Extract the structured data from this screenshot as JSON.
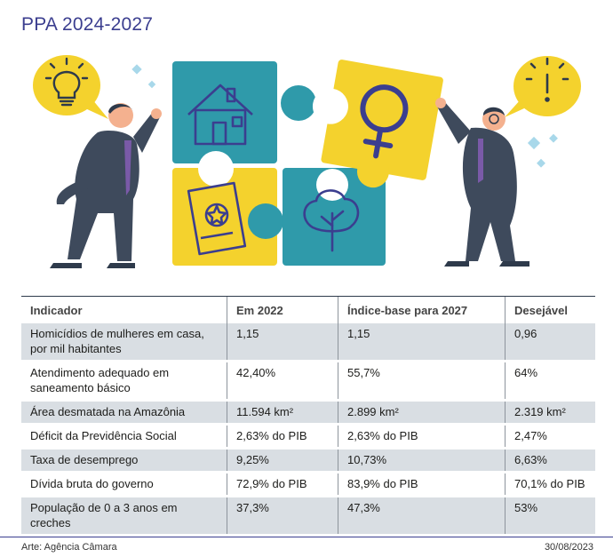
{
  "title": "PPA 2024-2027",
  "table": {
    "headers": [
      "Indicador",
      "Em 2022",
      "Índice-base para 2027",
      "Desejável"
    ],
    "rows": [
      {
        "indicator": "Homicídios de mulheres em casa, por mil habitantes",
        "y2022": "1,15",
        "base2027": "1,15",
        "desired": "0,96"
      },
      {
        "indicator": "Atendimento adequado em saneamento básico",
        "y2022": "42,40%",
        "base2027": "55,7%",
        "desired": "64%"
      },
      {
        "indicator": "Área desmatada na Amazônia",
        "y2022": "11.594 km²",
        "base2027": "2.899 km²",
        "desired": "2.319 km²"
      },
      {
        "indicator": "Déficit da Previdência Social",
        "y2022": "2,63% do PIB",
        "base2027": "2,63% do PIB",
        "desired": "2,47%"
      },
      {
        "indicator": "Taxa de desemprego",
        "y2022": "9,25%",
        "base2027": "10,73%",
        "desired": "6,63%"
      },
      {
        "indicator": "Dívida bruta do governo",
        "y2022": "72,9% do PIB",
        "base2027": "83,9% do PIB",
        "desired": "70,1% do PIB"
      },
      {
        "indicator": "População de 0 a 3 anos em creches",
        "y2022": "37,3%",
        "base2027": "47,3%",
        "desired": "53%"
      }
    ]
  },
  "footer": {
    "credit": "Arte: Agência Câmara",
    "date": "30/08/2023"
  },
  "colors": {
    "title": "#3b3e8f",
    "teal": "#2f9aaa",
    "yellow": "#f4d22d",
    "suit": "#3e4a5c",
    "stripe": "#d9dee3"
  },
  "illustration_icons": [
    "lightbulb-icon",
    "house-icon",
    "female-symbol-icon",
    "document-badge-icon",
    "tree-icon",
    "exclamation-icon"
  ]
}
